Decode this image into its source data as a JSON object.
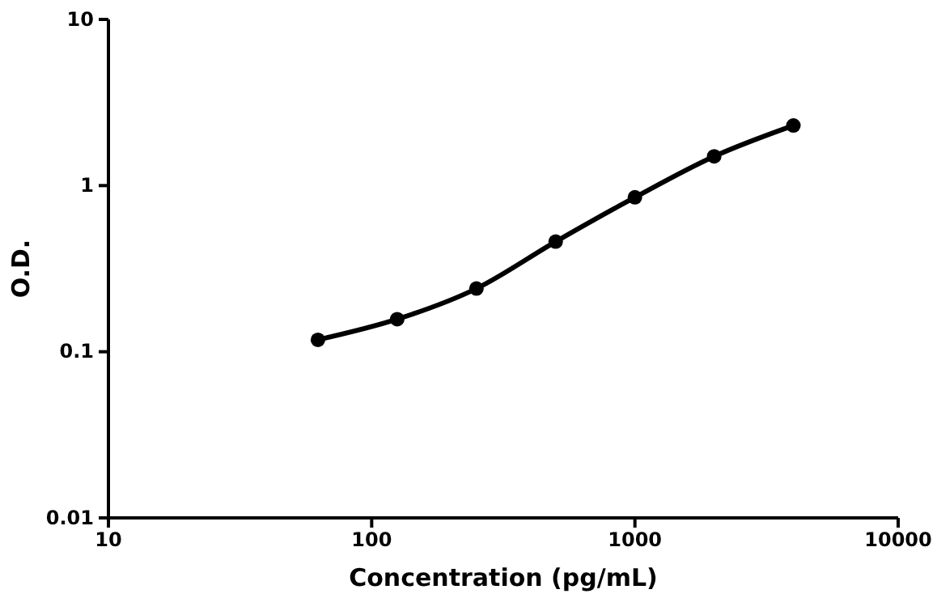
{
  "chart_data": {
    "type": "line",
    "xlabel": "Concentration (pg/mL)",
    "ylabel": "O.D.",
    "x": [
      62.5,
      125,
      250,
      500,
      1000,
      2000,
      4000
    ],
    "series": [
      {
        "color": "#000000",
        "values": [
          0.118,
          0.157,
          0.24,
          0.46,
          0.85,
          1.5,
          2.3
        ]
      }
    ],
    "log": "xy",
    "xlim": [
      10,
      10000
    ],
    "xticks": [
      10,
      100,
      1000,
      10000
    ],
    "ylim": [
      0.01,
      10
    ],
    "yticks": [
      0.01,
      0.1,
      1,
      10
    ],
    "marker": "circle",
    "line_style": "solid"
  }
}
